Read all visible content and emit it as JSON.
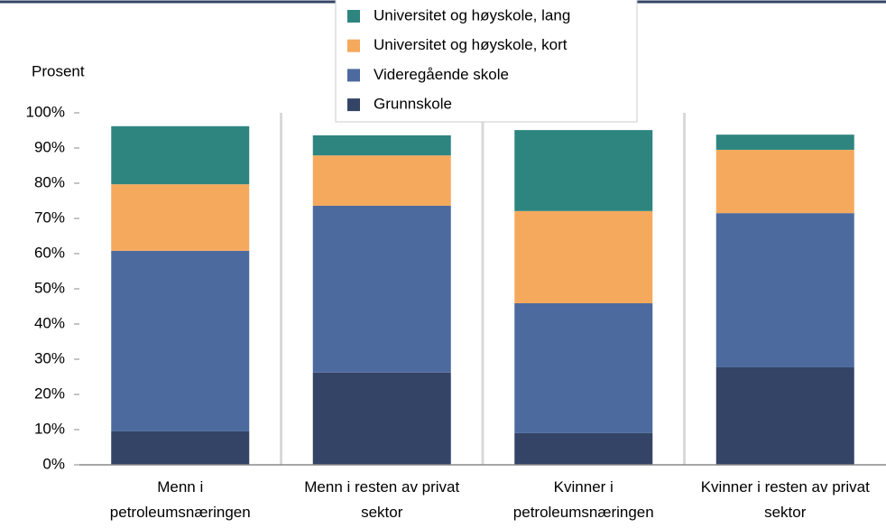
{
  "chart_data": {
    "type": "stacked_bar",
    "y_label": "Prosent",
    "categories": [
      "Menn i petroleumsnæringen",
      "Menn i resten av privat sektor",
      "Kvinner i petroleumsnæringen",
      "Kvinner i resten av privat sektor"
    ],
    "series": [
      {
        "name": "Grunnskole",
        "color": "#344466",
        "values": [
          9.5,
          26.2,
          9.0,
          27.7
        ]
      },
      {
        "name": "Videregående skole",
        "color": "#4d6a9e",
        "values": [
          51.3,
          47.4,
          36.9,
          43.8
        ]
      },
      {
        "name": "Universitet og høyskole, kort",
        "color": "#f5a95d",
        "values": [
          18.9,
          14.3,
          26.2,
          18.0
        ]
      },
      {
        "name": "Universitet og høyskole, lang",
        "color": "#2e8580",
        "values": [
          16.5,
          5.7,
          23.0,
          4.3
        ]
      }
    ],
    "ylim": [
      0,
      100
    ],
    "yticks": [
      {
        "value": 0,
        "label": "0%"
      },
      {
        "value": 10,
        "label": "10%"
      },
      {
        "value": 20,
        "label": "20%"
      },
      {
        "value": 30,
        "label": "30%"
      },
      {
        "value": 40,
        "label": "40%"
      },
      {
        "value": 50,
        "label": "50%"
      },
      {
        "value": 60,
        "label": "60%"
      },
      {
        "value": 70,
        "label": "70%"
      },
      {
        "value": 80,
        "label": "80%"
      },
      {
        "value": 90,
        "label": "90%"
      },
      {
        "value": 100,
        "label": "100%"
      }
    ],
    "legend": "top"
  }
}
